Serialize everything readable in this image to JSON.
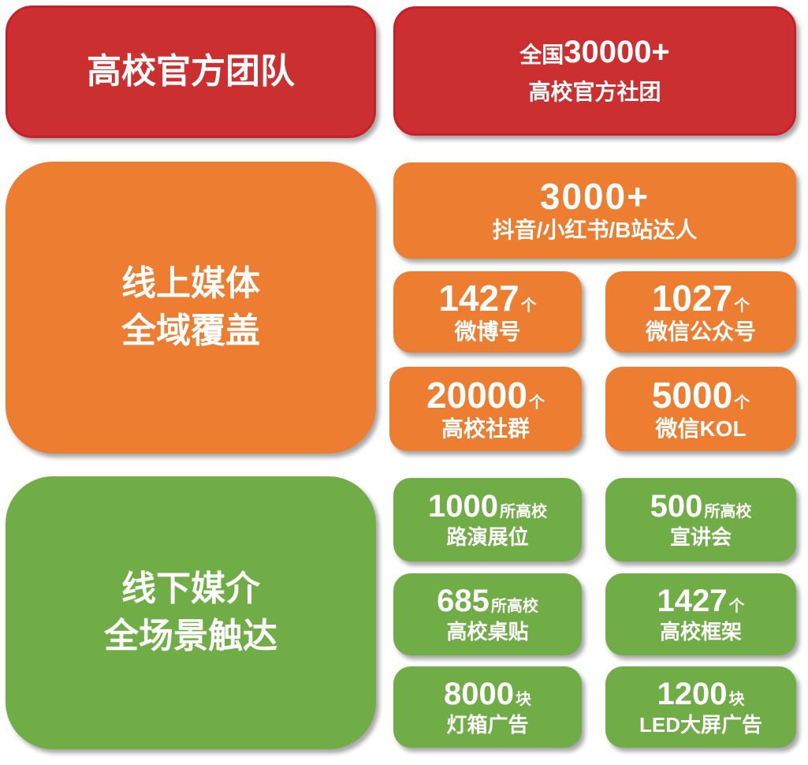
{
  "team": {
    "title": "高校官方团队",
    "stat_prefix": "全国",
    "stat_value": "30000+",
    "stat_label": "高校官方社团",
    "color": "#cc2f2f"
  },
  "online": {
    "title_line1": "线上媒体",
    "title_line2": "全域覆盖",
    "color": "#ed7d31",
    "headline": {
      "value": "3000+",
      "label": "抖音/小红书/B站达人"
    },
    "items": [
      {
        "value": "1427",
        "unit": "个",
        "label": "微博号"
      },
      {
        "value": "1027",
        "unit": "个",
        "label": "微信公众号"
      },
      {
        "value": "20000",
        "unit": "个",
        "label": "高校社群"
      },
      {
        "value": "5000",
        "unit": "个",
        "label": "微信KOL"
      }
    ]
  },
  "offline": {
    "title_line1": "线下媒介",
    "title_line2": "全场景触达",
    "color": "#70ad47",
    "items": [
      {
        "value": "1000",
        "unit": "所高校",
        "label": "路演展位"
      },
      {
        "value": "500",
        "unit": "所高校",
        "label": "宣讲会"
      },
      {
        "value": "685",
        "unit": "所高校",
        "label": "高校桌贴"
      },
      {
        "value": "1427",
        "unit": "个",
        "label": "高校框架"
      },
      {
        "value": "8000",
        "unit": "块",
        "label": "灯箱广告"
      },
      {
        "value": "1200",
        "unit": "块",
        "label": "LED大屏广告"
      }
    ]
  }
}
